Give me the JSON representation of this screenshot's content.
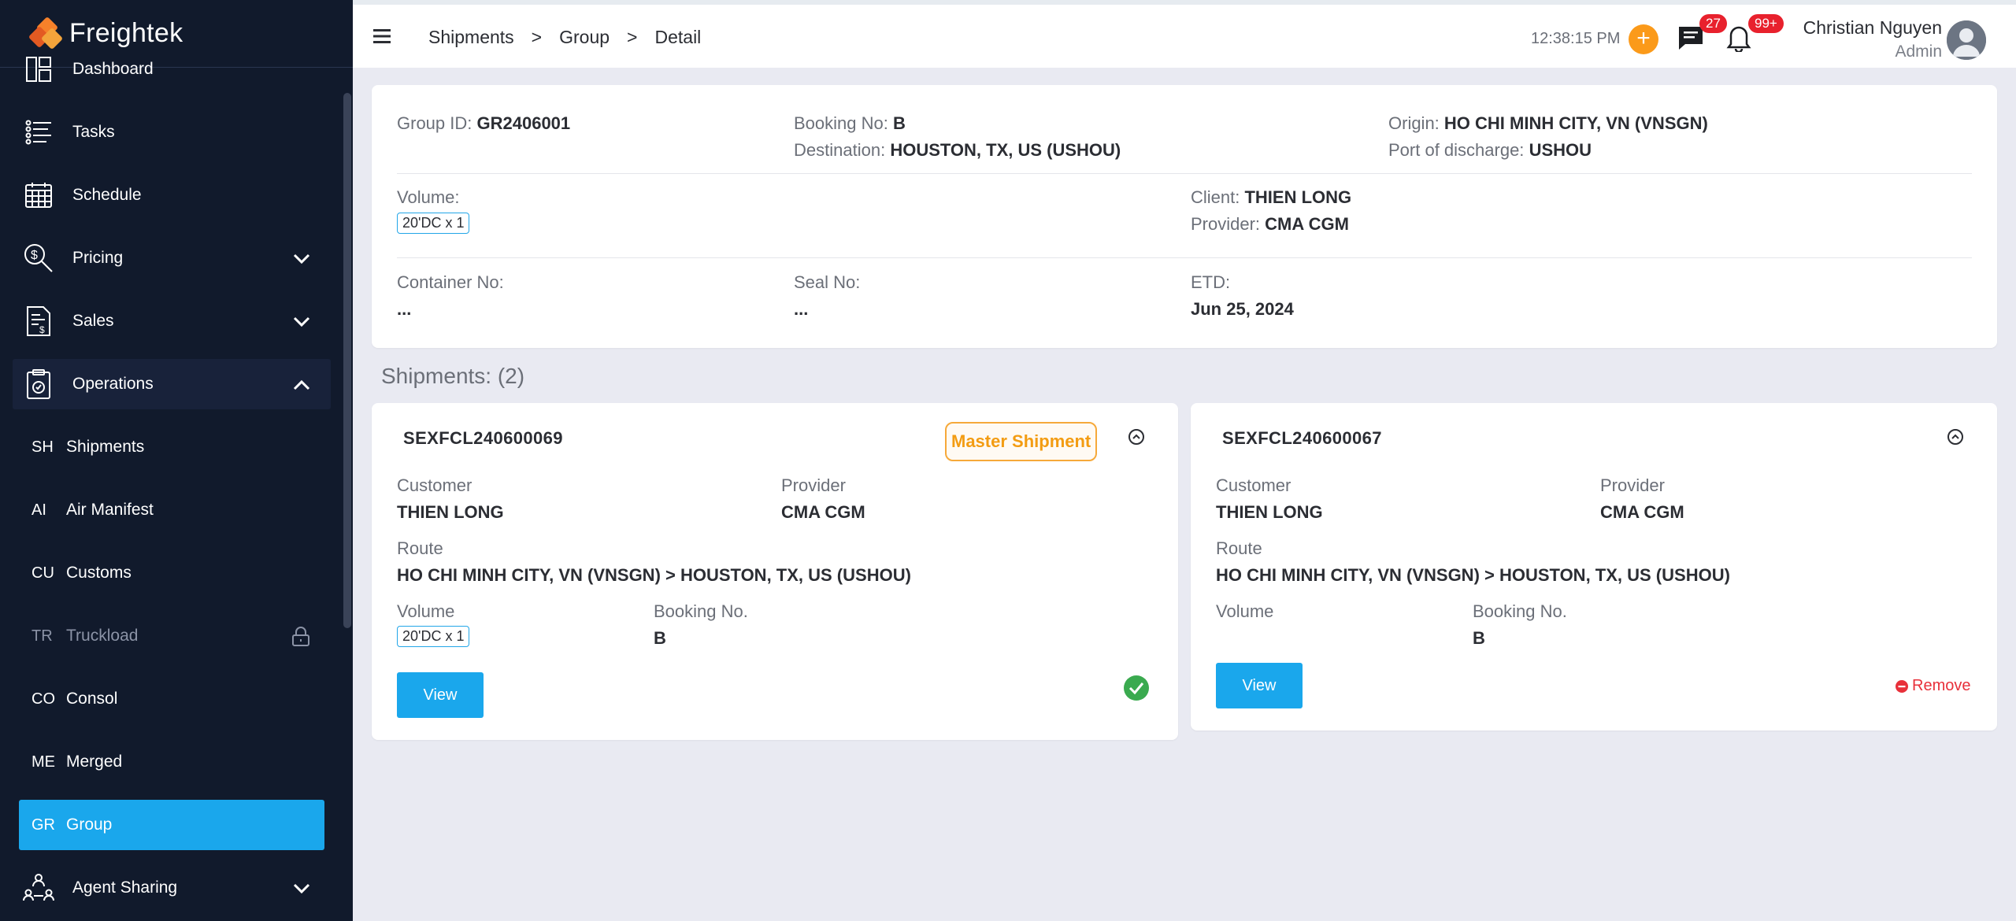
{
  "brand": {
    "name": "Freightek"
  },
  "sidebar": {
    "items": [
      {
        "label": "Dashboard"
      },
      {
        "label": "Tasks"
      },
      {
        "label": "Schedule"
      },
      {
        "label": "Pricing"
      },
      {
        "label": "Sales"
      },
      {
        "label": "Operations"
      }
    ],
    "operations_sub": [
      {
        "abbr": "SH",
        "label": "Shipments"
      },
      {
        "abbr": "AI",
        "label": "Air Manifest"
      },
      {
        "abbr": "CU",
        "label": "Customs"
      },
      {
        "abbr": "TR",
        "label": "Truckload"
      },
      {
        "abbr": "CO",
        "label": "Consol"
      },
      {
        "abbr": "ME",
        "label": "Merged"
      },
      {
        "abbr": "GR",
        "label": "Group"
      }
    ],
    "agent_sharing": {
      "label": "Agent Sharing"
    }
  },
  "header": {
    "breadcrumb": [
      "Shipments",
      ">",
      "Group",
      ">",
      "Detail"
    ],
    "time": "12:38:15 PM",
    "messages_badge": "27",
    "notifications_badge": "99+",
    "user_name": "Christian Nguyen",
    "user_role": "Admin"
  },
  "group": {
    "group_id_label": "Group ID:",
    "group_id": "GR2406001",
    "booking_label": "Booking No:",
    "booking": "B",
    "destination_label": "Destination:",
    "destination": "HOUSTON, TX, US (USHOU)",
    "origin_label": "Origin:",
    "origin": "HO CHI MINH CITY, VN (VNSGN)",
    "pod_label": "Port of discharge:",
    "pod": "USHOU",
    "volume_label": "Volume:",
    "volume": "20'DC x 1",
    "client_label": "Client:",
    "client": "THIEN LONG",
    "provider_label": "Provider:",
    "provider": "CMA CGM",
    "container_label": "Container No:",
    "container": "...",
    "seal_label": "Seal No:",
    "seal": "...",
    "etd_label": "ETD:",
    "etd": "Jun 25, 2024"
  },
  "shipments_title": "Shipments: (2)",
  "shipments": [
    {
      "id": "SEXFCL240600069",
      "master_label": "Master Shipment",
      "customer_label": "Customer",
      "customer": "THIEN LONG",
      "provider_label": "Provider",
      "provider": "CMA CGM",
      "route_label": "Route",
      "route": "HO CHI MINH CITY, VN (VNSGN) > HOUSTON, TX, US (USHOU)",
      "volume_label": "Volume",
      "volume": "20'DC x 1",
      "booking_label": "Booking No.",
      "booking": "B",
      "view_label": "View"
    },
    {
      "id": "SEXFCL240600067",
      "customer_label": "Customer",
      "customer": "THIEN LONG",
      "provider_label": "Provider",
      "provider": "CMA CGM",
      "route_label": "Route",
      "route": "HO CHI MINH CITY, VN (VNSGN) > HOUSTON, TX, US (USHOU)",
      "volume_label": "Volume",
      "booking_label": "Booking No.",
      "booking": "B",
      "view_label": "View",
      "remove_label": "Remove"
    }
  ],
  "colors": {
    "sidebar_bg": "#111a2c",
    "accent": "#1aa7ec",
    "master_orange": "#f39c12",
    "badge_red": "#e8212d",
    "success_green": "#3aaa4f",
    "remove_red": "#e8303a"
  }
}
